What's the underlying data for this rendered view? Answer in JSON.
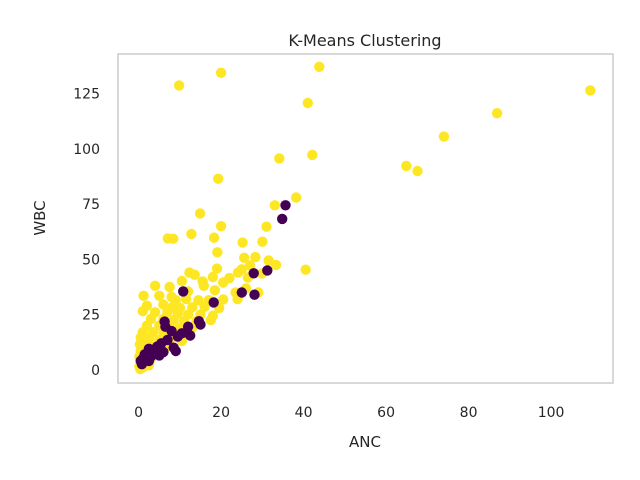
{
  "chart_data": {
    "type": "scatter",
    "title": "K-Means Clustering",
    "xlabel": "ANC",
    "ylabel": "WBC",
    "xlim": [
      -5,
      115
    ],
    "ylim": [
      -6,
      143
    ],
    "xticks": [
      0,
      20,
      40,
      60,
      80,
      100
    ],
    "yticks": [
      0,
      25,
      50,
      75,
      100,
      125
    ],
    "grid": false,
    "legend": "none",
    "colors": {
      "cluster_0": "#440154",
      "cluster_1": "#fde725",
      "frame": "#cccccc"
    },
    "series": [
      {
        "color": "#fde725",
        "points": [
          [
            109.5,
            126.5
          ],
          [
            43.8,
            137.2
          ],
          [
            20.0,
            134.5
          ],
          [
            9.8,
            128.8
          ],
          [
            41.0,
            120.8
          ],
          [
            86.9,
            116.2
          ],
          [
            74.0,
            105.6
          ],
          [
            42.1,
            97.3
          ],
          [
            34.1,
            95.7
          ],
          [
            64.9,
            92.3
          ],
          [
            67.6,
            90.0
          ],
          [
            19.3,
            86.5
          ],
          [
            38.2,
            78.0
          ],
          [
            33.0,
            74.5
          ],
          [
            14.9,
            70.8
          ],
          [
            20.0,
            65.0
          ],
          [
            31.0,
            64.8
          ],
          [
            40.5,
            45.3
          ],
          [
            7.1,
            59.5
          ],
          [
            8.4,
            59.3
          ],
          [
            18.3,
            59.8
          ],
          [
            12.8,
            61.5
          ],
          [
            25.2,
            57.6
          ],
          [
            30.0,
            58.0
          ],
          [
            19.1,
            53.2
          ],
          [
            25.6,
            50.7
          ],
          [
            28.3,
            51.0
          ],
          [
            31.5,
            49.5
          ],
          [
            33.3,
            47.5
          ],
          [
            27.0,
            47.2
          ],
          [
            24.1,
            44.0
          ],
          [
            25.0,
            45.5
          ],
          [
            19.0,
            45.8
          ],
          [
            12.3,
            44.0
          ],
          [
            13.6,
            43.0
          ],
          [
            18.0,
            42.0
          ],
          [
            22.0,
            41.5
          ],
          [
            26.5,
            41.8
          ],
          [
            29.9,
            43.6
          ],
          [
            15.5,
            40.0
          ],
          [
            20.5,
            39.5
          ],
          [
            10.5,
            40.2
          ],
          [
            4.0,
            38.0
          ],
          [
            7.5,
            37.5
          ],
          [
            15.8,
            38.0
          ],
          [
            12.0,
            35.5
          ],
          [
            18.5,
            36.0
          ],
          [
            23.5,
            35.0
          ],
          [
            26.0,
            36.8
          ],
          [
            29.0,
            35.0
          ],
          [
            1.2,
            33.5
          ],
          [
            5.0,
            33.5
          ],
          [
            8.0,
            33.0
          ],
          [
            9.0,
            31.5
          ],
          [
            11.5,
            32.0
          ],
          [
            14.5,
            31.5
          ],
          [
            17.0,
            31.5
          ],
          [
            20.5,
            31.8
          ],
          [
            24.0,
            32.0
          ],
          [
            2.0,
            29.0
          ],
          [
            6.0,
            29.5
          ],
          [
            8.3,
            28.5
          ],
          [
            10.0,
            28.0
          ],
          [
            13.0,
            28.3
          ],
          [
            16.0,
            28.5
          ],
          [
            19.5,
            28.0
          ],
          [
            1.0,
            26.5
          ],
          [
            4.0,
            26.0
          ],
          [
            7.0,
            26.2
          ],
          [
            9.5,
            25.5
          ],
          [
            12.0,
            25.0
          ],
          [
            15.0,
            25.0
          ],
          [
            18.0,
            24.5
          ],
          [
            3.0,
            23.0
          ],
          [
            6.0,
            23.0
          ],
          [
            8.5,
            22.5
          ],
          [
            11.0,
            22.0
          ],
          [
            14.0,
            22.0
          ],
          [
            17.5,
            22.5
          ],
          [
            2.0,
            20.0
          ],
          [
            5.0,
            20.0
          ],
          [
            7.5,
            19.5
          ],
          [
            10.0,
            19.0
          ],
          [
            13.0,
            19.0
          ],
          [
            1.0,
            17.0
          ],
          [
            3.5,
            17.0
          ],
          [
            6.0,
            16.5
          ],
          [
            9.0,
            16.0
          ],
          [
            12.0,
            16.0
          ],
          [
            0.5,
            14.5
          ],
          [
            2.5,
            14.0
          ],
          [
            5.0,
            13.5
          ],
          [
            7.5,
            13.0
          ],
          [
            10.5,
            13.0
          ],
          [
            0.3,
            11.5
          ],
          [
            2.0,
            11.0
          ],
          [
            4.0,
            10.5
          ],
          [
            6.5,
            10.0
          ],
          [
            0.5,
            8.5
          ],
          [
            2.5,
            8.0
          ],
          [
            4.5,
            7.5
          ],
          [
            0.2,
            6.0
          ],
          [
            1.5,
            5.5
          ],
          [
            3.0,
            5.0
          ],
          [
            0.5,
            3.5
          ],
          [
            1.5,
            3.0
          ],
          [
            0.2,
            1.5
          ],
          [
            1.0,
            1.0
          ],
          [
            0.4,
            0.3
          ],
          [
            2.5,
            2.0
          ]
        ]
      },
      {
        "color": "#440154",
        "points": [
          [
            35.6,
            74.5
          ],
          [
            34.8,
            68.3
          ],
          [
            27.9,
            43.7
          ],
          [
            31.2,
            45.0
          ],
          [
            28.1,
            34.0
          ],
          [
            25.0,
            35.0
          ],
          [
            10.8,
            35.5
          ],
          [
            18.2,
            30.5
          ],
          [
            14.6,
            22.0
          ],
          [
            15.0,
            20.5
          ],
          [
            12.0,
            19.5
          ],
          [
            10.5,
            16.5
          ],
          [
            12.5,
            15.5
          ],
          [
            6.3,
            21.8
          ],
          [
            6.5,
            19.5
          ],
          [
            8.0,
            17.5
          ],
          [
            9.5,
            15.0
          ],
          [
            7.0,
            13.5
          ],
          [
            5.5,
            12.0
          ],
          [
            4.5,
            10.5
          ],
          [
            2.5,
            9.5
          ],
          [
            3.5,
            8.5
          ],
          [
            8.5,
            10.0
          ],
          [
            9.0,
            8.5
          ],
          [
            6.0,
            8.0
          ],
          [
            5.0,
            6.5
          ],
          [
            3.0,
            6.0
          ],
          [
            1.5,
            7.0
          ],
          [
            1.0,
            5.0
          ],
          [
            2.5,
            4.0
          ],
          [
            0.5,
            4.0
          ],
          [
            0.8,
            2.5
          ]
        ]
      }
    ]
  }
}
